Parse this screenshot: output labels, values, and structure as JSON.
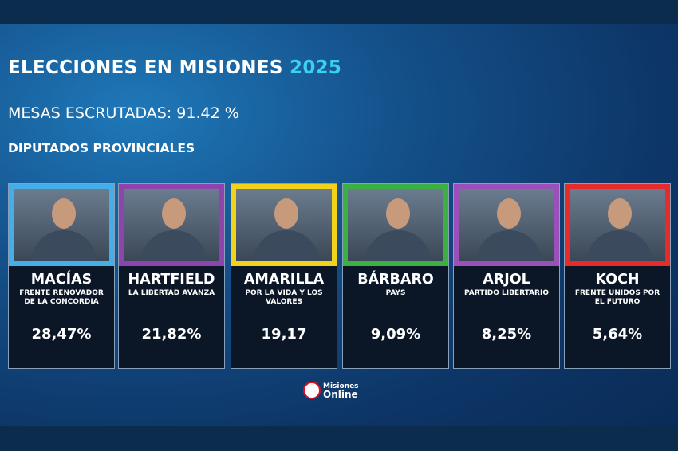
{
  "header": {
    "title": "ELECCIONES EN MISIONES",
    "year": "2025",
    "subtitle": "MESAS ESCRUTADAS: 91.42 %",
    "section": "DIPUTADOS PROVINCIALES"
  },
  "candidates": [
    {
      "name": "MACÍAS",
      "party": "FRENTE RENOVADOR DE LA CONCORDIA",
      "result": "28,47%"
    },
    {
      "name": "HARTFIELD",
      "party": "LA LIBERTAD AVANZA",
      "result": "21,82%"
    },
    {
      "name": "AMARILLA",
      "party": "POR LA VIDA Y LOS VALORES",
      "result": "19,17"
    },
    {
      "name": "BÁRBARO",
      "party": "PAYS",
      "result": "9,09%"
    },
    {
      "name": "ARJOL",
      "party": "PARTIDO LIBERTARIO",
      "result": "8,25%"
    },
    {
      "name": "KOCH",
      "party": "FRENTE UNIDOS POR EL FUTURO",
      "result": "5,64%"
    }
  ],
  "logo": {
    "line1": "Misiones",
    "line2": "Online"
  }
}
